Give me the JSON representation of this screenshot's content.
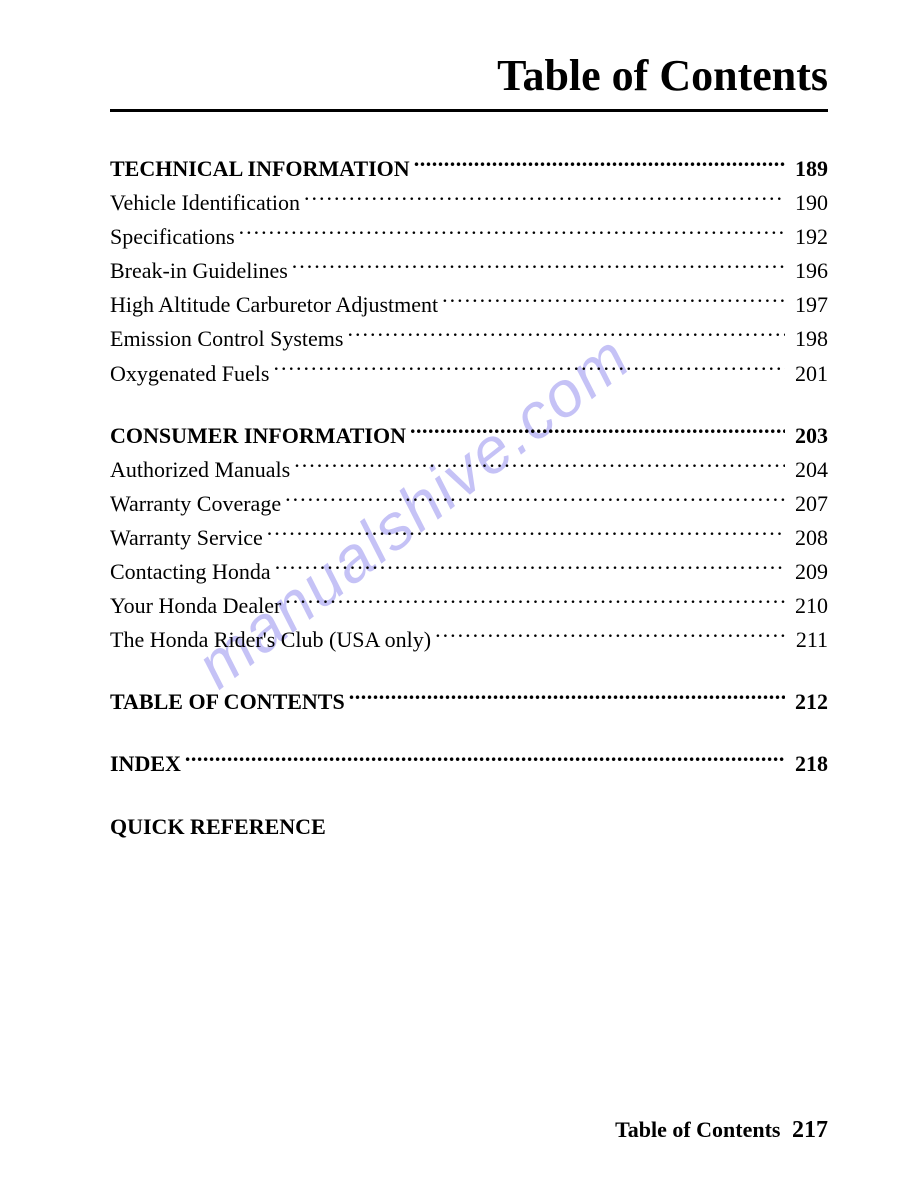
{
  "title": "Table of Contents",
  "watermark": "manualshive.com",
  "sections": [
    {
      "heading": {
        "label": "TECHNICAL INFORMATION",
        "page": "189"
      },
      "items": [
        {
          "label": "Vehicle Identification",
          "page": "190"
        },
        {
          "label": "Specifications",
          "page": "192"
        },
        {
          "label": "Break-in Guidelines",
          "page": "196"
        },
        {
          "label": "High Altitude Carburetor Adjustment",
          "page": "197"
        },
        {
          "label": "Emission Control Systems",
          "page": "198"
        },
        {
          "label": "Oxygenated Fuels",
          "page": "201"
        }
      ]
    },
    {
      "heading": {
        "label": "CONSUMER INFORMATION",
        "page": "203"
      },
      "items": [
        {
          "label": "Authorized Manuals",
          "page": "204"
        },
        {
          "label": "Warranty Coverage",
          "page": "207"
        },
        {
          "label": "Warranty Service",
          "page": "208"
        },
        {
          "label": "Contacting Honda",
          "page": "209"
        },
        {
          "label": "Your Honda Dealer",
          "page": "210"
        },
        {
          "label": "The Honda Rider's Club (USA only)",
          "page": "211"
        }
      ]
    },
    {
      "heading": {
        "label": "TABLE OF CONTENTS",
        "page": "212"
      },
      "items": []
    },
    {
      "heading": {
        "label": "INDEX",
        "page": "218"
      },
      "items": []
    },
    {
      "heading": {
        "label": "QUICK REFERENCE",
        "page": ""
      },
      "items": []
    }
  ],
  "footer": {
    "label": "Table of Contents",
    "page": "217"
  }
}
